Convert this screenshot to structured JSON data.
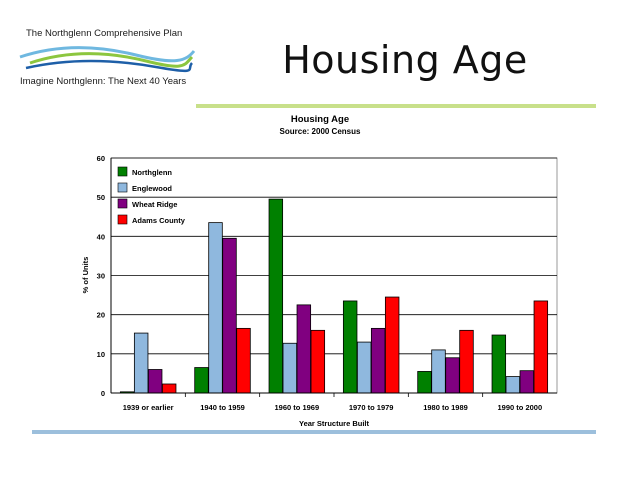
{
  "logo": {
    "top_text": "The Northglenn Comprehensive Plan",
    "bottom_text": "Imagine Northglenn: The Next 40 Years"
  },
  "slide": {
    "title": "Housing Age"
  },
  "colors": {
    "accent_green_rule": "#c8e08a",
    "accent_blue_rule": "#9cbfdc"
  },
  "chart_data": {
    "type": "bar",
    "title": "Housing Age",
    "subtitle": "Source: 2000 Census",
    "xlabel": "Year Structure Built",
    "ylabel": "% of Units",
    "ylim": [
      0,
      60
    ],
    "yticks": [
      0,
      10,
      20,
      30,
      40,
      50,
      60
    ],
    "grid": true,
    "legend_position": "top-left",
    "categories": [
      "1939 or earlier",
      "1940 to 1959",
      "1960 to 1969",
      "1970 to 1979",
      "1980 to 1989",
      "1990 to 2000"
    ],
    "series": [
      {
        "name": "Northglenn",
        "color": "#008000",
        "values": [
          0.3,
          6.5,
          49.5,
          23.5,
          5.5,
          14.8
        ]
      },
      {
        "name": "Englewood",
        "color": "#8fb8de",
        "values": [
          15.3,
          43.5,
          12.7,
          13.0,
          11.0,
          4.2
        ]
      },
      {
        "name": "Wheat Ridge",
        "color": "#800080",
        "values": [
          6.0,
          39.5,
          22.5,
          16.5,
          9.0,
          5.7
        ]
      },
      {
        "name": "Adams County",
        "color": "#ff0000",
        "values": [
          2.3,
          16.5,
          16.0,
          24.5,
          16.0,
          23.5
        ]
      }
    ]
  }
}
